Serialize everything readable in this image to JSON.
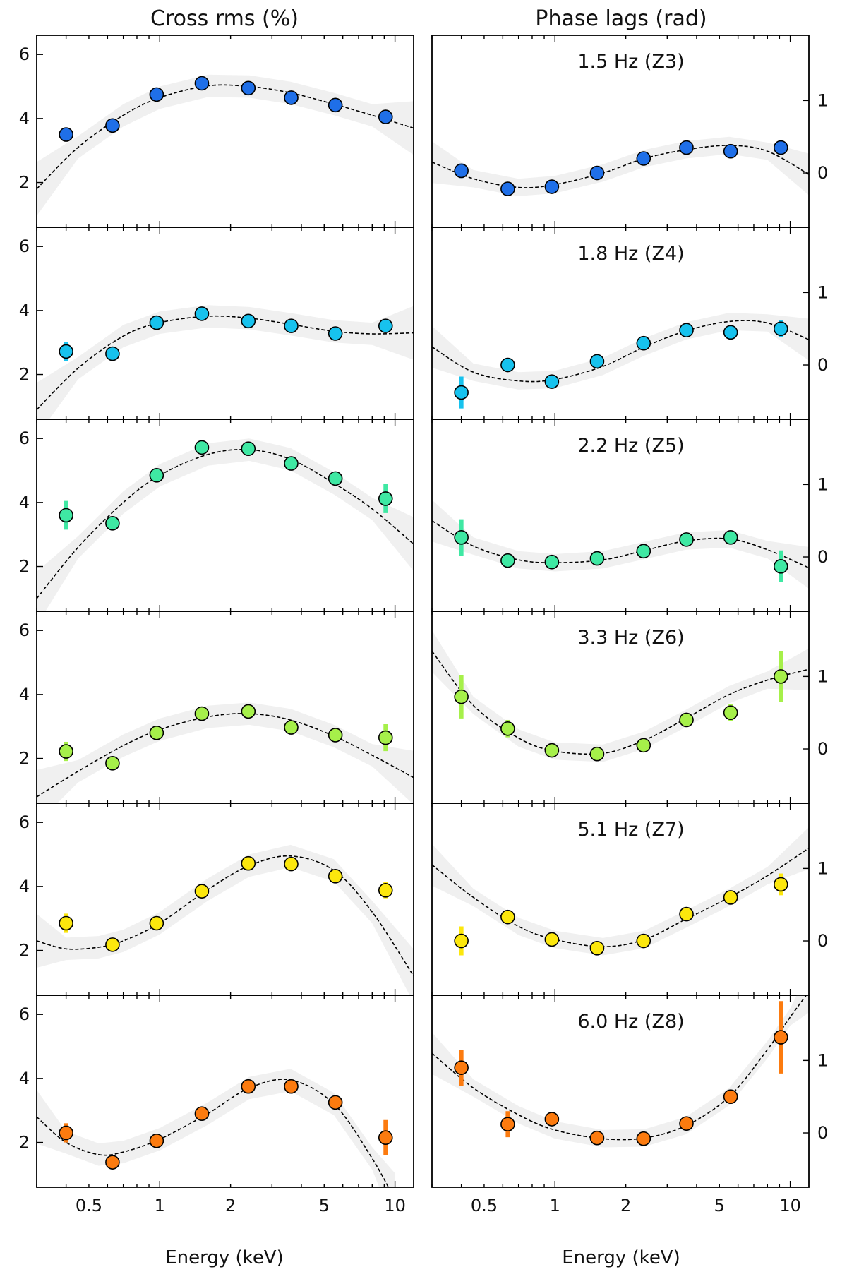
{
  "figure": {
    "left_title": "Cross rms (%)",
    "right_title": "Phase lags (rad)",
    "xlabel": "Energy (keV)"
  },
  "chart_data": {
    "type": "scatter",
    "x_scale": "log",
    "xlim": [
      0.3,
      12
    ],
    "x_ticks": [
      0.5,
      1,
      2,
      5,
      10
    ],
    "x_tick_labels": [
      "0.5",
      "1",
      "2",
      "5",
      "10"
    ],
    "energies": [
      0.4,
      0.63,
      0.97,
      1.51,
      2.38,
      3.62,
      5.58,
      9.12
    ],
    "rms": {
      "ylim": [
        0.6,
        6.6
      ],
      "y_ticks": [
        2,
        4,
        6
      ],
      "y_tick_labels": [
        "2",
        "4",
        "6"
      ]
    },
    "lag": {
      "ylim": [
        -0.75,
        1.9
      ],
      "y_ticks": [
        0,
        1
      ],
      "y_tick_labels": [
        "0",
        "1"
      ]
    },
    "panels": [
      {
        "label": "1.5 Hz (Z3)",
        "color": "#1f6fe8",
        "rms": {
          "values": [
            3.5,
            3.78,
            4.75,
            5.1,
            4.95,
            4.65,
            4.42,
            4.05
          ],
          "errors": [
            0.18,
            0.1,
            0.1,
            0.1,
            0.1,
            0.1,
            0.1,
            0.12
          ],
          "model_x": [
            0.3,
            0.45,
            0.7,
            1.0,
            1.6,
            2.4,
            3.6,
            5.5,
            8.0,
            12.0
          ],
          "model_y": [
            1.8,
            3.1,
            4.1,
            4.65,
            5.02,
            5.0,
            4.8,
            4.45,
            4.1,
            3.7
          ]
        },
        "lag": {
          "values": [
            0.03,
            -0.22,
            -0.19,
            0.0,
            0.2,
            0.35,
            0.3,
            0.35
          ],
          "errors": [
            0.1,
            0.05,
            0.04,
            0.04,
            0.04,
            0.04,
            0.08,
            0.08
          ],
          "model_x": [
            0.3,
            0.45,
            0.7,
            1.0,
            1.6,
            2.4,
            3.6,
            5.5,
            8.0,
            12.0
          ],
          "model_y": [
            0.15,
            -0.08,
            -0.2,
            -0.16,
            0.0,
            0.2,
            0.32,
            0.38,
            0.3,
            -0.02
          ]
        }
      },
      {
        "label": "1.8 Hz (Z4)",
        "color": "#17c2ee",
        "rms": {
          "values": [
            2.72,
            2.65,
            3.62,
            3.9,
            3.67,
            3.52,
            3.28,
            3.52
          ],
          "errors": [
            0.3,
            0.1,
            0.1,
            0.1,
            0.1,
            0.1,
            0.1,
            0.2
          ],
          "model_x": [
            0.3,
            0.45,
            0.7,
            1.0,
            1.6,
            2.4,
            3.6,
            5.5,
            8.0,
            12.0
          ],
          "model_y": [
            0.9,
            2.2,
            3.2,
            3.62,
            3.82,
            3.76,
            3.57,
            3.35,
            3.27,
            3.3
          ]
        },
        "lag": {
          "values": [
            -0.38,
            0.0,
            -0.23,
            0.05,
            0.3,
            0.48,
            0.45,
            0.5
          ],
          "errors": [
            0.22,
            0.08,
            0.06,
            0.05,
            0.05,
            0.06,
            0.08,
            0.12
          ],
          "model_x": [
            0.3,
            0.45,
            0.7,
            1.0,
            1.6,
            2.4,
            3.6,
            5.5,
            8.0,
            12.0
          ],
          "model_y": [
            0.25,
            -0.1,
            -0.22,
            -0.2,
            -0.02,
            0.25,
            0.47,
            0.6,
            0.58,
            0.35
          ]
        }
      },
      {
        "label": "2.2 Hz (Z5)",
        "color": "#3fe8a3",
        "rms": {
          "values": [
            3.6,
            3.35,
            4.85,
            5.72,
            5.68,
            5.22,
            4.75,
            4.12
          ],
          "errors": [
            0.45,
            0.1,
            0.1,
            0.1,
            0.1,
            0.1,
            0.1,
            0.45
          ],
          "model_x": [
            0.3,
            0.45,
            0.7,
            1.0,
            1.6,
            2.4,
            3.6,
            5.5,
            8.0,
            12.0
          ],
          "model_y": [
            1.0,
            2.6,
            4.0,
            4.85,
            5.5,
            5.65,
            5.35,
            4.6,
            3.8,
            2.7
          ]
        },
        "lag": {
          "values": [
            0.27,
            -0.05,
            -0.07,
            -0.02,
            0.08,
            0.24,
            0.27,
            -0.13
          ],
          "errors": [
            0.25,
            0.05,
            0.04,
            0.04,
            0.04,
            0.05,
            0.06,
            0.22
          ],
          "model_x": [
            0.3,
            0.45,
            0.7,
            1.0,
            1.6,
            2.4,
            3.6,
            5.5,
            8.0,
            12.0
          ],
          "model_y": [
            0.5,
            0.15,
            -0.04,
            -0.08,
            -0.04,
            0.09,
            0.22,
            0.25,
            0.1,
            -0.15
          ]
        }
      },
      {
        "label": "3.3 Hz (Z6)",
        "color": "#a6f04a",
        "rms": {
          "values": [
            2.22,
            1.85,
            2.8,
            3.4,
            3.47,
            2.97,
            2.73,
            2.65
          ],
          "errors": [
            0.3,
            0.1,
            0.1,
            0.1,
            0.1,
            0.1,
            0.15,
            0.42
          ],
          "model_x": [
            0.3,
            0.45,
            0.7,
            1.0,
            1.6,
            2.4,
            3.6,
            5.5,
            8.0,
            12.0
          ],
          "model_y": [
            0.8,
            1.6,
            2.4,
            2.9,
            3.3,
            3.4,
            3.2,
            2.7,
            2.1,
            1.4
          ]
        },
        "lag": {
          "values": [
            0.72,
            0.28,
            -0.02,
            -0.07,
            0.05,
            0.4,
            0.5,
            1.0
          ],
          "errors": [
            0.3,
            0.12,
            0.06,
            0.05,
            0.05,
            0.06,
            0.12,
            0.35
          ],
          "model_x": [
            0.3,
            0.45,
            0.7,
            1.0,
            1.6,
            2.4,
            3.6,
            5.5,
            8.0,
            12.0
          ],
          "model_y": [
            1.35,
            0.6,
            0.15,
            -0.03,
            -0.06,
            0.12,
            0.42,
            0.75,
            0.95,
            1.1
          ]
        }
      },
      {
        "label": "5.1 Hz (Z7)",
        "color": "#fce70d",
        "rms": {
          "values": [
            2.85,
            2.18,
            2.85,
            3.85,
            4.72,
            4.7,
            4.32,
            3.88
          ],
          "errors": [
            0.3,
            0.1,
            0.1,
            0.1,
            0.1,
            0.1,
            0.1,
            0.25
          ],
          "model_x": [
            0.3,
            0.4,
            0.55,
            0.7,
            1.0,
            1.6,
            2.4,
            3.6,
            5.5,
            8.0,
            12.0
          ],
          "model_y": [
            2.3,
            2.05,
            2.1,
            2.3,
            2.85,
            3.9,
            4.65,
            4.95,
            4.5,
            3.2,
            1.2
          ]
        },
        "lag": {
          "values": [
            0.0,
            0.33,
            0.02,
            -0.1,
            0.0,
            0.37,
            0.6,
            0.78
          ],
          "errors": [
            0.2,
            0.06,
            0.05,
            0.05,
            0.05,
            0.06,
            0.08,
            0.15
          ],
          "model_x": [
            0.3,
            0.45,
            0.7,
            1.0,
            1.6,
            2.4,
            3.6,
            5.5,
            8.0,
            12.0
          ],
          "model_y": [
            1.05,
            0.6,
            0.2,
            0.02,
            -0.08,
            0.02,
            0.3,
            0.6,
            0.9,
            1.28
          ]
        }
      },
      {
        "label": "6.0 Hz (Z8)",
        "color": "#fc7b0f",
        "rms": {
          "values": [
            2.3,
            1.38,
            2.05,
            2.9,
            3.75,
            3.75,
            3.25,
            2.15
          ],
          "errors": [
            0.3,
            0.1,
            0.1,
            0.1,
            0.1,
            0.1,
            0.1,
            0.55
          ],
          "model_x": [
            0.3,
            0.4,
            0.55,
            0.7,
            1.0,
            1.6,
            2.4,
            3.6,
            5.5,
            8.0,
            10.0
          ],
          "model_y": [
            2.8,
            2.0,
            1.62,
            1.7,
            2.1,
            2.9,
            3.7,
            3.95,
            3.2,
            1.5,
            0.2
          ]
        },
        "lag": {
          "values": [
            0.9,
            0.12,
            0.19,
            -0.07,
            -0.08,
            0.13,
            0.5,
            1.32
          ],
          "errors": [
            0.25,
            0.18,
            0.05,
            0.05,
            0.05,
            0.06,
            0.06,
            0.5
          ],
          "model_x": [
            0.3,
            0.45,
            0.7,
            1.0,
            1.6,
            2.4,
            3.6,
            5.5,
            8.0,
            10.0,
            12.0
          ],
          "model_y": [
            1.1,
            0.62,
            0.25,
            0.04,
            -0.08,
            -0.07,
            0.1,
            0.5,
            1.15,
            1.6,
            1.95
          ]
        }
      }
    ]
  }
}
